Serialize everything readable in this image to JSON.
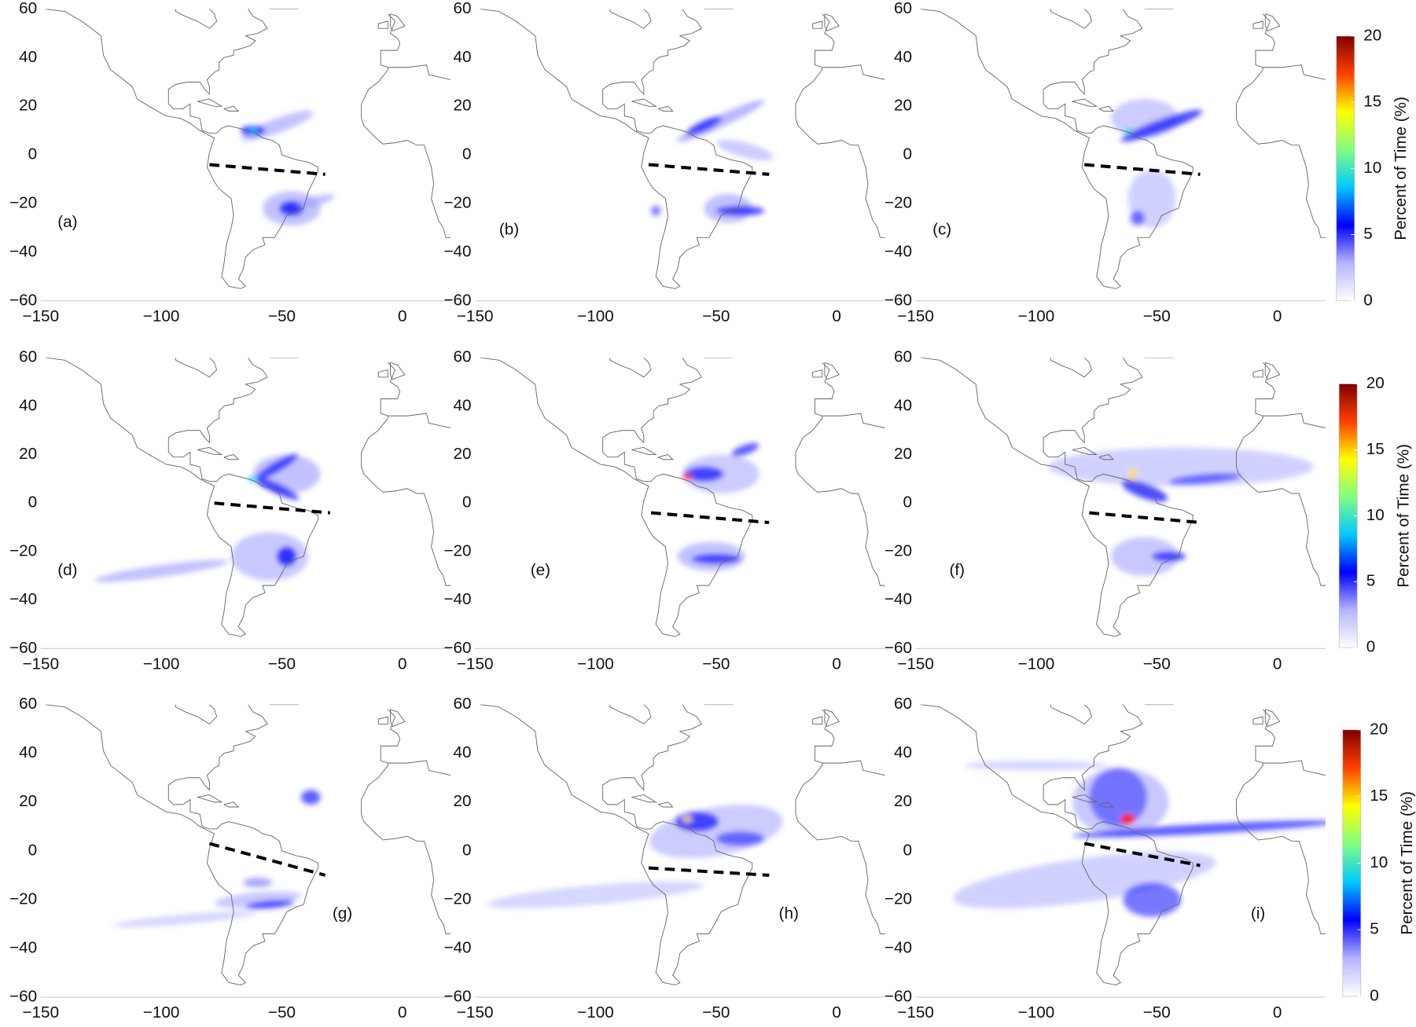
{
  "chart_data": [
    {
      "type": "map",
      "label": "(a)",
      "xlim": [
        -150,
        20
      ],
      "ylim": [
        -60,
        60
      ],
      "xticks": [
        {
          "value": -150,
          "label": "−150"
        },
        {
          "value": -100,
          "label": "−100"
        },
        {
          "value": -50,
          "label": "−50"
        },
        0
      ],
      "yticks": [
        {
          "value": -60,
          "label": "−60"
        },
        {
          "value": -40,
          "label": "−40"
        },
        {
          "value": -20,
          "label": "−20"
        },
        0,
        20,
        40,
        60
      ]
    },
    {
      "type": "map",
      "label": "(b)",
      "xlim": [
        -150,
        20
      ],
      "ylim": [
        -60,
        60
      ],
      "xticks": [
        {
          "value": -150,
          "label": "−150"
        },
        {
          "value": -100,
          "label": "−100"
        },
        {
          "value": -50,
          "label": "−50"
        },
        0
      ],
      "yticks": [
        {
          "value": -60,
          "label": "−60"
        },
        {
          "value": -40,
          "label": "−40"
        },
        {
          "value": -20,
          "label": "−20"
        },
        0,
        20,
        40,
        60
      ]
    },
    {
      "type": "map",
      "label": "(c)",
      "xlim": [
        -150,
        20
      ],
      "ylim": [
        -60,
        60
      ],
      "xticks": [
        {
          "value": -150,
          "label": "−150"
        },
        {
          "value": -100,
          "label": "−100"
        },
        {
          "value": -50,
          "label": "−50"
        },
        0
      ],
      "yticks": [
        {
          "value": -60,
          "label": "−60"
        },
        {
          "value": -40,
          "label": "−40"
        },
        {
          "value": -20,
          "label": "−20"
        },
        0,
        20,
        40,
        60
      ]
    },
    {
      "type": "colorbar",
      "label": "Percent of Time (%)",
      "ylim": [
        0,
        20
      ],
      "yticks": [
        0,
        5,
        10,
        15,
        20
      ],
      "colors": [
        "#ffffff",
        "#b4b4ff",
        "#0000ff",
        "#00c8ff",
        "#80ff80",
        "#ffff00",
        "#ff4000",
        "#800000"
      ]
    },
    {
      "type": "map",
      "label": "(d)",
      "xlim": [
        -150,
        20
      ],
      "ylim": [
        -60,
        60
      ],
      "xticks": [
        {
          "value": -150,
          "label": "−150"
        },
        {
          "value": -100,
          "label": "−100"
        },
        {
          "value": -50,
          "label": "−50"
        },
        0
      ],
      "yticks": [
        {
          "value": -60,
          "label": "−60"
        },
        {
          "value": -40,
          "label": "−40"
        },
        {
          "value": -20,
          "label": "−20"
        },
        0,
        20,
        40,
        60
      ]
    },
    {
      "type": "map",
      "label": "(e)",
      "xlim": [
        -150,
        20
      ],
      "ylim": [
        -60,
        60
      ],
      "xticks": [
        {
          "value": -150,
          "label": "−150"
        },
        {
          "value": -100,
          "label": "−100"
        },
        {
          "value": -50,
          "label": "−50"
        },
        0
      ],
      "yticks": [
        {
          "value": -60,
          "label": "−60"
        },
        {
          "value": -40,
          "label": "−40"
        },
        {
          "value": -20,
          "label": "−20"
        },
        0,
        20,
        40,
        60
      ]
    },
    {
      "type": "map",
      "label": "(f)",
      "xlim": [
        -150,
        20
      ],
      "ylim": [
        -60,
        60
      ],
      "xticks": [
        {
          "value": -150,
          "label": "−150"
        },
        {
          "value": -100,
          "label": "−100"
        },
        {
          "value": -50,
          "label": "−50"
        },
        0
      ],
      "yticks": [
        {
          "value": -60,
          "label": "−60"
        },
        {
          "value": -40,
          "label": "−40"
        },
        {
          "value": -20,
          "label": "−20"
        },
        0,
        20,
        40,
        60
      ]
    },
    {
      "type": "colorbar",
      "label": "Percent of Time (%)",
      "ylim": [
        0,
        20
      ],
      "yticks": [
        0,
        5,
        10,
        15,
        20
      ],
      "colors": [
        "#ffffff",
        "#b4b4ff",
        "#0000ff",
        "#00c8ff",
        "#80ff80",
        "#ffff00",
        "#ff4000",
        "#800000"
      ]
    },
    {
      "type": "map",
      "label": "(g)",
      "xlim": [
        -150,
        20
      ],
      "ylim": [
        -60,
        60
      ],
      "xticks": [
        {
          "value": -150,
          "label": "−150"
        },
        {
          "value": -100,
          "label": "−100"
        },
        {
          "value": -50,
          "label": "−50"
        },
        0
      ],
      "yticks": [
        {
          "value": -60,
          "label": "−60"
        },
        {
          "value": -40,
          "label": "−40"
        },
        {
          "value": -20,
          "label": "−20"
        },
        0,
        20,
        40,
        60
      ]
    },
    {
      "type": "map",
      "label": "(h)",
      "xlim": [
        -150,
        20
      ],
      "ylim": [
        -60,
        60
      ],
      "xticks": [
        {
          "value": -150,
          "label": "−150"
        },
        {
          "value": -100,
          "label": "−100"
        },
        {
          "value": -50,
          "label": "−50"
        },
        0
      ],
      "yticks": [
        {
          "value": -60,
          "label": "−60"
        },
        {
          "value": -40,
          "label": "−40"
        },
        {
          "value": -20,
          "label": "−20"
        },
        0,
        20,
        40,
        60
      ]
    },
    {
      "type": "map",
      "label": "(i)",
      "xlim": [
        -150,
        20
      ],
      "ylim": [
        -60,
        60
      ],
      "xticks": [
        {
          "value": -150,
          "label": "−150"
        },
        {
          "value": -100,
          "label": "−100"
        },
        {
          "value": -50,
          "label": "−50"
        },
        0
      ],
      "yticks": [
        {
          "value": -60,
          "label": "−60"
        },
        {
          "value": -40,
          "label": "−40"
        },
        {
          "value": -20,
          "label": "−20"
        },
        0,
        20,
        40,
        60
      ]
    },
    {
      "type": "colorbar",
      "label": "Percent of Time (%)",
      "ylim": [
        0,
        20
      ],
      "yticks": [
        0,
        5,
        10,
        15,
        20
      ],
      "colors": [
        "#ffffff",
        "#b4b4ff",
        "#0000ff",
        "#00c8ff",
        "#80ff80",
        "#ffff00",
        "#ff4000",
        "#800000"
      ]
    }
  ]
}
